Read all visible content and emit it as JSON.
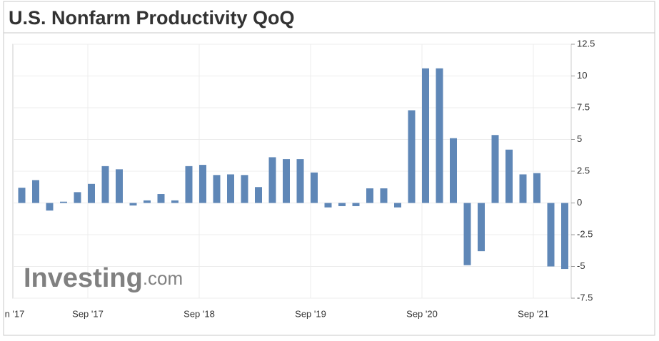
{
  "chart_data": {
    "type": "bar",
    "title": "U.S. Nonfarm Productivity QoQ",
    "watermark": "Investing",
    "watermark_suffix": ".com",
    "categories": [
      "n '17",
      null,
      null,
      null,
      null,
      "Sep '17",
      null,
      null,
      null,
      null,
      null,
      null,
      null,
      "Sep '18",
      null,
      null,
      null,
      null,
      null,
      null,
      null,
      "Sep '19",
      null,
      null,
      null,
      null,
      null,
      null,
      null,
      "Sep '20",
      null,
      null,
      null,
      null,
      null,
      null,
      null,
      "Sep '21",
      null,
      null
    ],
    "values": [
      1.2,
      1.8,
      -0.6,
      0.1,
      0.85,
      1.5,
      2.9,
      2.65,
      -0.2,
      0.2,
      0.7,
      0.2,
      2.9,
      3.0,
      2.2,
      2.25,
      2.2,
      1.25,
      3.6,
      3.45,
      3.45,
      2.4,
      -0.35,
      -0.25,
      -0.25,
      1.15,
      1.15,
      -0.35,
      7.3,
      10.6,
      10.6,
      5.1,
      -4.9,
      -3.8,
      5.35,
      4.2,
      2.25,
      2.35,
      -5.0,
      -5.2
    ],
    "color": "#5f87b7",
    "ylim": [
      -7.5,
      12.5
    ],
    "yticks": [
      -7.5,
      -5,
      -2.5,
      0,
      2.5,
      5,
      7.5,
      10,
      12.5
    ],
    "grid": true
  }
}
